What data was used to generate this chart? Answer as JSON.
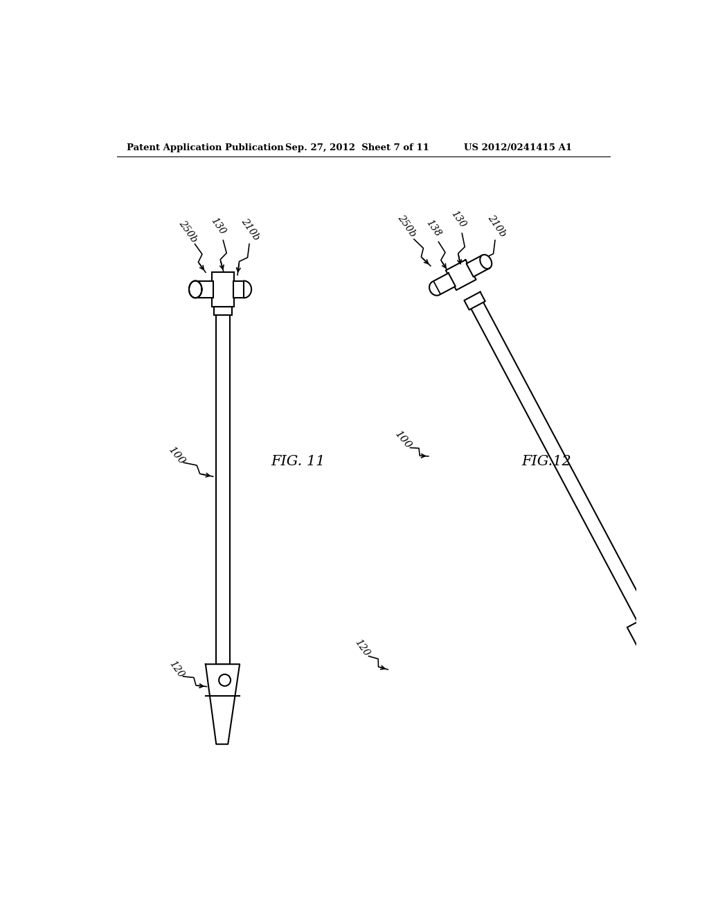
{
  "bg_color": "#ffffff",
  "line_color": "#000000",
  "header_text": "Patent Application Publication",
  "header_date": "Sep. 27, 2012  Sheet 7 of 11",
  "header_patent": "US 2012/0241415 A1",
  "fig11_label": "FIG. 11",
  "fig12_label": "FIG.12",
  "label_250b": "250b",
  "label_130": "130",
  "label_210b": "210b",
  "label_100_fig11": "100",
  "label_120_fig11": "120",
  "label_250b_fig12": "250b",
  "label_130_fig12": "130",
  "label_158": "138",
  "label_210b_fig12": "210b",
  "label_100_fig12": "100",
  "label_120_fig12": "120"
}
